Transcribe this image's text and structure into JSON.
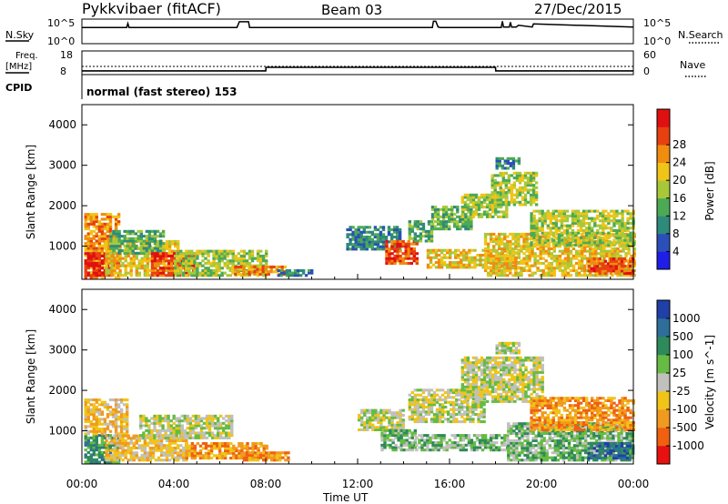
{
  "header": {
    "title": "Pykkvibaer (fitACF)",
    "beam": "Beam 03",
    "date": "27/Dec/2015"
  },
  "labels": {
    "nsky": "N.Sky",
    "nsearch": "N.Search",
    "freq": "Freq.",
    "mhz": "[MHz]",
    "nave": "Nave",
    "cpid": "CPID",
    "program": "normal (fast stereo) 153",
    "xlabel": "Time UT"
  },
  "chart_data": [
    {
      "type": "line",
      "name": "noise-panel",
      "left_ticks": [
        "10^5",
        "10^0"
      ],
      "right_ticks": [
        "10^5",
        "10^0"
      ],
      "left_label": "N.Sky",
      "right_label": "N.Search",
      "series": [
        {
          "name": "N.Sky",
          "x": [
            0,
            1.95,
            2.0,
            2.05,
            6.75,
            6.85,
            7.25,
            7.3,
            15.25,
            15.3,
            15.4,
            15.5,
            15.6,
            18.25,
            18.3,
            18.35,
            18.6,
            18.65,
            18.7,
            18.9,
            19.0,
            19.6,
            19.65,
            24
          ],
          "y": [
            3.5,
            3.5,
            4.4,
            3.5,
            3.5,
            4.8,
            4.8,
            3.5,
            3.5,
            4.9,
            4.9,
            3.6,
            3.5,
            3.5,
            4.9,
            3.6,
            3.6,
            4.7,
            3.6,
            3.6,
            4.0,
            3.6,
            4.3,
            3.6
          ]
        }
      ],
      "note_line_start_x": 0.08
    },
    {
      "type": "line",
      "name": "freq-nave-panel",
      "left_ticks": [
        18,
        8
      ],
      "right_ticks": [
        60,
        0
      ],
      "series": [
        {
          "name": "Freq.",
          "x": [
            0,
            8,
            8.01,
            18,
            18.01,
            24
          ],
          "y": [
            9.3,
            9.3,
            10.9,
            10.9,
            9.3,
            9.3
          ]
        },
        {
          "name": "Nave",
          "x": [
            0,
            24
          ],
          "y": [
            20,
            20
          ]
        }
      ]
    },
    {
      "type": "heatmap",
      "name": "power-panel",
      "xlabel": "Time UT",
      "ylabel": "Slant Range [km]",
      "x_range": [
        0,
        24
      ],
      "ylim": [
        180,
        4500
      ],
      "x_ticks": [
        "00:00",
        "04:00",
        "08:00",
        "12:00",
        "16:00",
        "20:00",
        "00:00"
      ],
      "y_ticks": [
        1000,
        2000,
        3000,
        4000
      ],
      "colorbar": {
        "label": "Power [dB]",
        "ticks": [
          4,
          8,
          12,
          16,
          20,
          24,
          28
        ],
        "colors": [
          "#1e1ee6",
          "#2a4fb8",
          "#2e8a7a",
          "#4caa55",
          "#a8c83a",
          "#f0c418",
          "#f08c10",
          "#e84010",
          "#e01010"
        ]
      },
      "regions": [
        {
          "t0": 0.1,
          "t1": 1.6,
          "r0": 200,
          "r1": 1800,
          "level": 6
        },
        {
          "t0": 0.1,
          "t1": 1.2,
          "r0": 250,
          "r1": 800,
          "level": 8
        },
        {
          "t0": 1.0,
          "t1": 4.2,
          "r0": 250,
          "r1": 1100,
          "level": 5
        },
        {
          "t0": 1.2,
          "t1": 3.5,
          "r0": 800,
          "r1": 1400,
          "level": 3
        },
        {
          "t0": 3.0,
          "t1": 5.0,
          "r0": 250,
          "r1": 800,
          "level": 7
        },
        {
          "t0": 4.0,
          "t1": 8.0,
          "r0": 250,
          "r1": 900,
          "level": 4
        },
        {
          "t0": 6.5,
          "t1": 8.8,
          "r0": 280,
          "r1": 500,
          "level": 6
        },
        {
          "t0": 8.5,
          "t1": 10.0,
          "r0": 250,
          "r1": 400,
          "level": 2
        },
        {
          "t0": 11.5,
          "t1": 13.8,
          "r0": 900,
          "r1": 1500,
          "level": 2
        },
        {
          "t0": 13.2,
          "t1": 14.6,
          "r0": 550,
          "r1": 1100,
          "level": 7
        },
        {
          "t0": 14.2,
          "t1": 15.2,
          "r0": 1100,
          "r1": 1600,
          "level": 3
        },
        {
          "t0": 15.2,
          "t1": 17.0,
          "r0": 1400,
          "r1": 2000,
          "level": 3
        },
        {
          "t0": 16.5,
          "t1": 18.5,
          "r0": 1700,
          "r1": 2300,
          "level": 4
        },
        {
          "t0": 17.8,
          "t1": 19.8,
          "r0": 2000,
          "r1": 2800,
          "level": 4
        },
        {
          "t0": 18.0,
          "t1": 19.0,
          "r0": 2900,
          "r1": 3200,
          "level": 2
        },
        {
          "t0": 15.0,
          "t1": 19.0,
          "r0": 450,
          "r1": 900,
          "level": 5
        },
        {
          "t0": 17.5,
          "t1": 24.0,
          "r0": 250,
          "r1": 1300,
          "level": 5
        },
        {
          "t0": 19.5,
          "t1": 24.0,
          "r0": 1000,
          "r1": 1900,
          "level": 4
        },
        {
          "t0": 22.0,
          "t1": 24.0,
          "r0": 300,
          "r1": 700,
          "level": 7
        }
      ]
    },
    {
      "type": "heatmap",
      "name": "velocity-panel",
      "xlabel": "Time UT",
      "ylabel": "Slant Range [km]",
      "x_range": [
        0,
        24
      ],
      "ylim": [
        180,
        4500
      ],
      "x_ticks": [
        "00:00",
        "04:00",
        "08:00",
        "12:00",
        "16:00",
        "20:00",
        "00:00"
      ],
      "y_ticks": [
        1000,
        2000,
        3000,
        4000
      ],
      "colorbar": {
        "label": "Velocity [m s^-1]",
        "ticks": [
          "1000",
          "500",
          "100",
          "25",
          "-25",
          "-100",
          "-500",
          "-1000"
        ],
        "colors": [
          "#2040a8",
          "#2e6e9a",
          "#2e8a5a",
          "#66bb44",
          "#c0c0bc",
          "#f0c418",
          "#f09a20",
          "#f06010",
          "#e81010"
        ]
      },
      "regions": [
        {
          "t0": 0.1,
          "t1": 1.6,
          "r0": 200,
          "r1": 900,
          "level": 2
        },
        {
          "t0": 0.1,
          "t1": 2.0,
          "r0": 900,
          "r1": 1800,
          "level": 5
        },
        {
          "t0": 1.0,
          "t1": 4.5,
          "r0": 250,
          "r1": 900,
          "level": 5
        },
        {
          "t0": 2.5,
          "t1": 6.5,
          "r0": 800,
          "r1": 1400,
          "level": 4
        },
        {
          "t0": 4.5,
          "t1": 8.0,
          "r0": 300,
          "r1": 700,
          "level": 6
        },
        {
          "t0": 7.0,
          "t1": 9.0,
          "r0": 250,
          "r1": 450,
          "level": 6
        },
        {
          "t0": 12.0,
          "t1": 14.0,
          "r0": 1000,
          "r1": 1500,
          "level": 4
        },
        {
          "t0": 13.0,
          "t1": 14.5,
          "r0": 500,
          "r1": 1000,
          "level": 3
        },
        {
          "t0": 14.2,
          "t1": 17.5,
          "r0": 1200,
          "r1": 2000,
          "level": 4
        },
        {
          "t0": 16.5,
          "t1": 20.0,
          "r0": 1700,
          "r1": 2800,
          "level": 4
        },
        {
          "t0": 18.0,
          "t1": 19.0,
          "r0": 2900,
          "r1": 3200,
          "level": 4
        },
        {
          "t0": 14.5,
          "t1": 18.5,
          "r0": 500,
          "r1": 900,
          "level": 3
        },
        {
          "t0": 18.5,
          "t1": 24.0,
          "r0": 250,
          "r1": 1200,
          "level": 3
        },
        {
          "t0": 19.5,
          "t1": 24.0,
          "r0": 1000,
          "r1": 1800,
          "level": 6
        },
        {
          "t0": 22.0,
          "t1": 24.0,
          "r0": 300,
          "r1": 700,
          "level": 1
        }
      ]
    }
  ]
}
